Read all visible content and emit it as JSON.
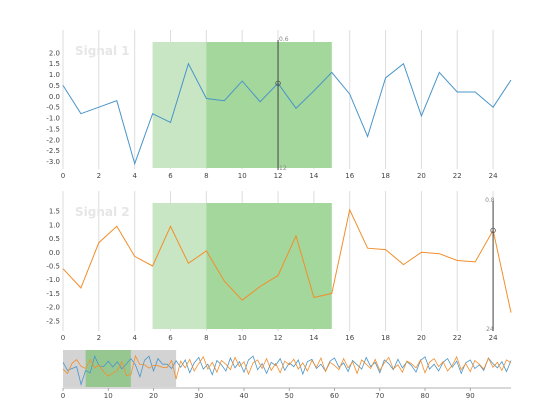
{
  "colors": {
    "signal1": "#4a95c9",
    "signal2": "#f28e2b",
    "gridline": "#dddddd",
    "axis": "#999999",
    "band_light": "#c8e6c3",
    "band_dark": "#a4d79c",
    "band_brush": "#8cc485",
    "nav_bg": "#d3d3d3"
  },
  "chart_data": [
    {
      "type": "line",
      "title": "Signal 1",
      "x": [
        0,
        1,
        2,
        3,
        4,
        5,
        6,
        7,
        8,
        9,
        10,
        11,
        12,
        13,
        14,
        15,
        16,
        17,
        18,
        19,
        20,
        21,
        22,
        23,
        24,
        25
      ],
      "series": [
        {
          "name": "Signal 1",
          "values": [
            0.5,
            -0.8,
            -0.5,
            -0.2,
            -3.1,
            -0.8,
            -1.2,
            1.5,
            -0.1,
            -0.2,
            0.7,
            -0.25,
            0.6,
            -0.55,
            0.25,
            1.1,
            0.1,
            -1.85,
            0.85,
            1.5,
            -0.9,
            1.1,
            0.2,
            0.2,
            -0.5,
            0.75
          ]
        }
      ],
      "xlim": [
        0,
        25
      ],
      "ylim": [
        -3.3,
        2.5
      ],
      "x_ticks": [
        0,
        2,
        4,
        6,
        8,
        10,
        12,
        14,
        16,
        18,
        20,
        22,
        24
      ],
      "y_ticks": [
        -3.0,
        -2.5,
        -2.0,
        -1.5,
        -1.0,
        -0.5,
        0.0,
        0.5,
        1.0,
        1.5,
        2.0
      ],
      "y_tick_labels": [
        "-3.0",
        "-2.5",
        "-2.0",
        "-1.5",
        "-1.0",
        "-0.5",
        "0.0",
        "0.5",
        "1.0",
        "1.5",
        "2.0"
      ],
      "highlight_bands": [
        {
          "from": 5,
          "to": 8,
          "shade": "light"
        },
        {
          "from": 8,
          "to": 15,
          "shade": "dark"
        }
      ],
      "cursor": {
        "x": 12,
        "marker_value": 0.6,
        "top_label": "0.6",
        "bottom_label": "12"
      },
      "grid": true
    },
    {
      "type": "line",
      "title": "Signal 2",
      "x": [
        0,
        1,
        2,
        3,
        4,
        5,
        6,
        7,
        8,
        9,
        10,
        11,
        12,
        13,
        14,
        15,
        16,
        17,
        18,
        19,
        20,
        21,
        22,
        23,
        24,
        25
      ],
      "series": [
        {
          "name": "Signal 2",
          "values": [
            -0.6,
            -1.3,
            0.35,
            0.95,
            -0.15,
            -0.5,
            0.95,
            -0.4,
            0.05,
            -1.05,
            -1.75,
            -1.25,
            -0.85,
            0.6,
            -1.65,
            -1.5,
            1.55,
            0.15,
            0.1,
            -0.45,
            0.0,
            -0.05,
            -0.3,
            -0.35,
            0.8,
            -2.2
          ]
        }
      ],
      "xlim": [
        0,
        25
      ],
      "ylim": [
        -2.8,
        1.8
      ],
      "x_ticks": [
        0,
        2,
        4,
        6,
        8,
        10,
        12,
        14,
        16,
        18,
        20,
        22,
        24
      ],
      "y_ticks": [
        -2.5,
        -2.0,
        -1.5,
        -1.0,
        -0.5,
        0.0,
        0.5,
        1.0,
        1.5
      ],
      "y_tick_labels": [
        "-2.5",
        "-2.0",
        "-1.5",
        "-1.0",
        "-0.5",
        "0.0",
        "0.5",
        "1.0",
        "1.5"
      ],
      "highlight_bands": [
        {
          "from": 5,
          "to": 8,
          "shade": "light"
        },
        {
          "from": 8,
          "to": 15,
          "shade": "dark"
        }
      ],
      "cursor": {
        "x": 24,
        "marker_value": 0.8,
        "top_label": "0.8",
        "bottom_label": "24"
      },
      "grid": true
    },
    {
      "type": "line",
      "title": "",
      "x_ticks": [
        0,
        10,
        20,
        30,
        40,
        50,
        60,
        70,
        80,
        90
      ],
      "xlim": [
        0,
        99
      ],
      "ylim": [
        -3.5,
        2.5
      ],
      "viewport": {
        "from": 0,
        "to": 25
      },
      "brush": {
        "from": 5,
        "to": 15
      },
      "series": [
        {
          "name": "Signal 1",
          "values": [
            0.5,
            -0.8,
            -0.5,
            -0.2,
            -3.1,
            -0.8,
            -1.2,
            1.5,
            -0.1,
            -0.2,
            0.7,
            -0.25,
            0.6,
            -0.55,
            0.25,
            1.1,
            0.1,
            -1.85,
            0.85,
            1.5,
            -0.9,
            1.1,
            0.2,
            0.2,
            -0.5,
            0.75,
            -0.3,
            0.9,
            -1.2,
            0.4,
            1.3,
            -0.6,
            0.2,
            -1.5,
            0.8,
            0.1,
            -0.9,
            1.2,
            -0.4,
            0.6,
            -1.1,
            0.9,
            1.5,
            -0.7,
            0.3,
            -1.3,
            0.5,
            0.0,
            1.1,
            -0.8,
            0.4,
            -0.2,
            0.9,
            -1.4,
            0.6,
            1.0,
            -0.5,
            0.2,
            -0.9,
            0.7,
            1.2,
            -0.3,
            0.4,
            -1.0,
            0.8,
            0.1,
            -0.6,
            1.3,
            -0.2,
            0.5,
            -1.2,
            0.9,
            0.3,
            -0.7,
            1.0,
            -0.4,
            0.6,
            0.0,
            -1.1,
            0.8,
            1.4,
            -0.6,
            0.2,
            -0.9,
            0.5,
            1.1,
            -0.3,
            0.7,
            -1.3,
            0.4,
            0.9,
            -0.5,
            0.1,
            -0.8,
            1.2,
            0.3,
            -0.4,
            0.6,
            -1.0,
            0.8
          ]
        },
        {
          "name": "Signal 2",
          "values": [
            -0.6,
            -1.3,
            0.35,
            0.95,
            -0.15,
            -0.5,
            0.95,
            -0.4,
            0.05,
            -1.05,
            -1.75,
            -1.25,
            -0.85,
            0.6,
            -1.65,
            -1.5,
            1.55,
            0.15,
            0.1,
            -0.45,
            0.0,
            -0.05,
            -0.3,
            -0.35,
            0.8,
            -2.2,
            0.7,
            -0.4,
            1.0,
            -0.9,
            0.3,
            1.4,
            -0.6,
            0.5,
            -1.1,
            0.8,
            0.2,
            -0.7,
            1.3,
            -0.2,
            0.6,
            -1.4,
            0.4,
            0.9,
            -0.5,
            1.1,
            -0.8,
            0.3,
            -1.2,
            0.7,
            0.1,
            1.0,
            -0.6,
            0.4,
            -0.9,
            0.8,
            -0.3,
            1.2,
            -1.0,
            0.5,
            0.0,
            -0.7,
            1.1,
            -0.4,
            0.6,
            -1.3,
            0.9,
            0.2,
            -0.5,
            1.0,
            -0.8,
            0.4,
            1.3,
            -0.6,
            0.1,
            -1.1,
            0.7,
            0.3,
            -0.4,
            0.9,
            -1.2,
            0.5,
            1.1,
            -0.2,
            0.6,
            -0.9,
            0.0,
            1.4,
            -0.7,
            0.3,
            -1.0,
            0.8,
            0.2,
            -0.6,
            1.2,
            -0.3,
            0.5,
            -0.8,
            0.9,
            0.4
          ]
        }
      ]
    }
  ]
}
